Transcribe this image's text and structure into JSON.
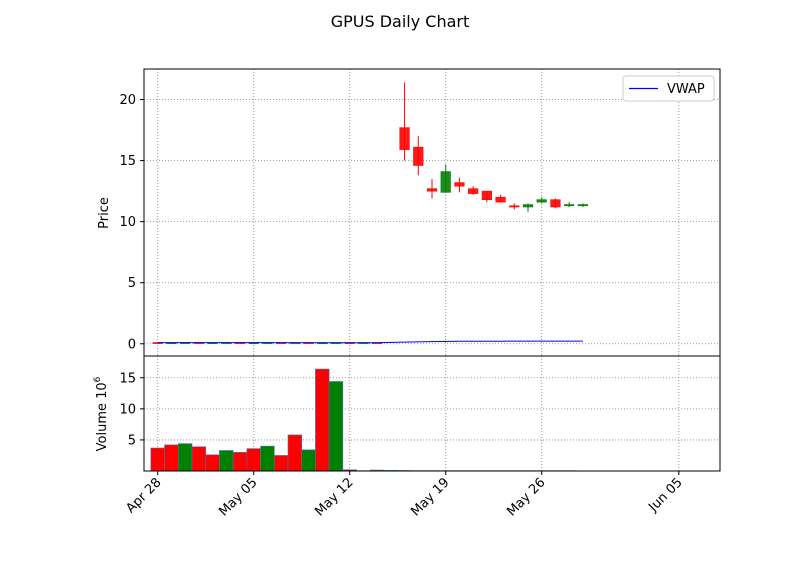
{
  "chart_data": [
    {
      "type": "candlestick",
      "title": "GPUS Daily Chart",
      "ylabel": "Price",
      "ylim": [
        -1,
        22.5
      ],
      "yticks": [
        0,
        5,
        10,
        15,
        20
      ],
      "grid": true,
      "legend": {
        "placement": "top-right",
        "entries": [
          "VWAP"
        ]
      },
      "colors": {
        "up": "#008000",
        "down": "#ff0000",
        "vwap": "#0000ff"
      },
      "x_dates": [
        "2025-04-27",
        "2025-04-28",
        "2025-04-29",
        "2025-04-30",
        "2025-05-01",
        "2025-05-02",
        "2025-05-03",
        "2025-05-04",
        "2025-05-05",
        "2025-05-06",
        "2025-05-07",
        "2025-05-08",
        "2025-05-09",
        "2025-05-10",
        "2025-05-11",
        "2025-05-12",
        "2025-05-13",
        "2025-05-14",
        "2025-05-15",
        "2025-05-16",
        "2025-05-17",
        "2025-05-18",
        "2025-05-19",
        "2025-05-20",
        "2025-05-21",
        "2025-05-22",
        "2025-05-23",
        "2025-05-24",
        "2025-05-25",
        "2025-05-26",
        "2025-05-27",
        "2025-05-28",
        "2025-05-29",
        "2025-05-30",
        "2025-05-31",
        "2025-06-01",
        "2025-06-02",
        "2025-06-03",
        "2025-06-04",
        "2025-06-05",
        "2025-06-06",
        "2025-06-07",
        "2025-06-08"
      ],
      "candles": [
        {
          "date": "2025-04-28",
          "open": 0.1,
          "high": 0.12,
          "low": 0.08,
          "close": 0.09
        },
        {
          "date": "2025-04-29",
          "open": 0.09,
          "high": 0.11,
          "low": 0.08,
          "close": 0.09
        },
        {
          "date": "2025-04-30",
          "open": 0.09,
          "high": 0.11,
          "low": 0.08,
          "close": 0.1
        },
        {
          "date": "2025-05-01",
          "open": 0.1,
          "high": 0.12,
          "low": 0.08,
          "close": 0.09
        },
        {
          "date": "2025-05-02",
          "open": 0.09,
          "high": 0.11,
          "low": 0.08,
          "close": 0.09
        },
        {
          "date": "2025-05-03",
          "open": 0.09,
          "high": 0.11,
          "low": 0.08,
          "close": 0.1
        },
        {
          "date": "2025-05-04",
          "open": 0.1,
          "high": 0.12,
          "low": 0.08,
          "close": 0.09
        },
        {
          "date": "2025-05-05",
          "open": 0.09,
          "high": 0.11,
          "low": 0.08,
          "close": 0.09
        },
        {
          "date": "2025-05-06",
          "open": 0.09,
          "high": 0.11,
          "low": 0.08,
          "close": 0.1
        },
        {
          "date": "2025-05-07",
          "open": 0.1,
          "high": 0.11,
          "low": 0.08,
          "close": 0.09
        },
        {
          "date": "2025-05-08",
          "open": 0.09,
          "high": 0.11,
          "low": 0.08,
          "close": 0.1
        },
        {
          "date": "2025-05-09",
          "open": 0.1,
          "high": 0.11,
          "low": 0.08,
          "close": 0.09
        },
        {
          "date": "2025-05-10",
          "open": 0.09,
          "high": 0.11,
          "low": 0.08,
          "close": 0.09
        },
        {
          "date": "2025-05-11",
          "open": 0.09,
          "high": 0.11,
          "low": 0.08,
          "close": 0.1
        },
        {
          "date": "2025-05-12",
          "open": 0.1,
          "high": 0.11,
          "low": 0.08,
          "close": 0.09
        },
        {
          "date": "2025-05-13",
          "open": 0.09,
          "high": 0.11,
          "low": 0.08,
          "close": 0.1
        },
        {
          "date": "2025-05-14",
          "open": 0.1,
          "high": 0.11,
          "low": 0.08,
          "close": 0.09
        },
        {
          "date": "2025-05-16",
          "open": 17.7,
          "high": 21.4,
          "low": 15.0,
          "close": 15.9
        },
        {
          "date": "2025-05-17",
          "open": 16.1,
          "high": 17.0,
          "low": 13.8,
          "close": 14.6
        },
        {
          "date": "2025-05-18",
          "open": 12.7,
          "high": 13.5,
          "low": 11.9,
          "close": 12.5
        },
        {
          "date": "2025-05-19",
          "open": 12.4,
          "high": 14.7,
          "low": 12.4,
          "close": 14.1
        },
        {
          "date": "2025-05-20",
          "open": 13.2,
          "high": 13.6,
          "low": 12.4,
          "close": 12.9
        },
        {
          "date": "2025-05-21",
          "open": 12.7,
          "high": 12.9,
          "low": 12.2,
          "close": 12.3
        },
        {
          "date": "2025-05-22",
          "open": 12.5,
          "high": 12.5,
          "low": 11.6,
          "close": 11.8
        },
        {
          "date": "2025-05-23",
          "open": 12.0,
          "high": 12.2,
          "low": 11.6,
          "close": 11.6
        },
        {
          "date": "2025-05-24",
          "open": 11.3,
          "high": 11.5,
          "low": 11.0,
          "close": 11.2
        },
        {
          "date": "2025-05-25",
          "open": 11.2,
          "high": 11.5,
          "low": 10.8,
          "close": 11.4
        },
        {
          "date": "2025-05-26",
          "open": 11.6,
          "high": 12.0,
          "low": 11.5,
          "close": 11.8
        },
        {
          "date": "2025-05-27",
          "open": 11.8,
          "high": 11.9,
          "low": 11.1,
          "close": 11.2
        },
        {
          "date": "2025-05-28",
          "open": 11.3,
          "high": 11.6,
          "low": 11.2,
          "close": 11.4
        },
        {
          "date": "2025-05-29",
          "open": 11.3,
          "high": 11.5,
          "low": 11.2,
          "close": 11.4
        }
      ],
      "vwap": [
        {
          "date": "2025-04-28",
          "value": 0.1
        },
        {
          "date": "2025-05-05",
          "value": 0.1
        },
        {
          "date": "2025-05-12",
          "value": 0.09
        },
        {
          "date": "2025-05-14",
          "value": 0.09
        },
        {
          "date": "2025-05-16",
          "value": 0.14
        },
        {
          "date": "2025-05-18",
          "value": 0.18
        },
        {
          "date": "2025-05-20",
          "value": 0.2
        },
        {
          "date": "2025-05-23",
          "value": 0.21
        },
        {
          "date": "2025-05-26",
          "value": 0.22
        },
        {
          "date": "2025-05-29",
          "value": 0.22
        }
      ],
      "xticks": [
        {
          "date": "2025-04-28",
          "label": "Apr 28"
        },
        {
          "date": "2025-05-05",
          "label": "May 05"
        },
        {
          "date": "2025-05-12",
          "label": "May 12"
        },
        {
          "date": "2025-05-19",
          "label": "May 19"
        },
        {
          "date": "2025-05-26",
          "label": "May 26"
        },
        {
          "date": "2025-06-05",
          "label": "Jun 05"
        }
      ]
    },
    {
      "type": "bar",
      "ylabel": "Volume  10",
      "ylabel_exponent": "6",
      "unit_multiplier": 1000000,
      "ylim": [
        0,
        18.5
      ],
      "yticks": [
        5,
        10,
        15
      ],
      "grid": true,
      "bars": [
        {
          "date": "2025-04-28",
          "value": 3.7,
          "color": "#ff0000"
        },
        {
          "date": "2025-04-29",
          "value": 4.2,
          "color": "#ff0000"
        },
        {
          "date": "2025-04-30",
          "value": 4.4,
          "color": "#008000"
        },
        {
          "date": "2025-05-01",
          "value": 3.9,
          "color": "#ff0000"
        },
        {
          "date": "2025-05-02",
          "value": 2.6,
          "color": "#ff0000"
        },
        {
          "date": "2025-05-03",
          "value": 3.3,
          "color": "#008000"
        },
        {
          "date": "2025-05-04",
          "value": 3.0,
          "color": "#ff0000"
        },
        {
          "date": "2025-05-05",
          "value": 3.6,
          "color": "#ff0000"
        },
        {
          "date": "2025-05-06",
          "value": 4.0,
          "color": "#008000"
        },
        {
          "date": "2025-05-07",
          "value": 2.5,
          "color": "#ff0000"
        },
        {
          "date": "2025-05-08",
          "value": 5.8,
          "color": "#ff0000"
        },
        {
          "date": "2025-05-09",
          "value": 3.4,
          "color": "#008000"
        },
        {
          "date": "2025-05-10",
          "value": 16.4,
          "color": "#ff0000"
        },
        {
          "date": "2025-05-11",
          "value": 14.4,
          "color": "#008000"
        },
        {
          "date": "2025-05-12",
          "value": 0.2,
          "color": "#ff0000"
        },
        {
          "date": "2025-05-13",
          "value": 0.05,
          "color": "#ff0000"
        },
        {
          "date": "2025-05-14",
          "value": 0.15,
          "color": "#ff0000"
        },
        {
          "date": "2025-05-15",
          "value": 0.1,
          "color": "#008000"
        },
        {
          "date": "2025-05-16",
          "value": 0.08,
          "color": "#ff0000"
        },
        {
          "date": "2025-05-17",
          "value": 0.06,
          "color": "#ff0000"
        },
        {
          "date": "2025-05-18",
          "value": 0.06,
          "color": "#ff0000"
        },
        {
          "date": "2025-05-19",
          "value": 0.05,
          "color": "#008000"
        },
        {
          "date": "2025-05-20",
          "value": 0.05,
          "color": "#ff0000"
        },
        {
          "date": "2025-05-21",
          "value": 0.05,
          "color": "#ff0000"
        },
        {
          "date": "2025-05-22",
          "value": 0.05,
          "color": "#ff0000"
        },
        {
          "date": "2025-05-23",
          "value": 0.05,
          "color": "#008000"
        },
        {
          "date": "2025-05-24",
          "value": 0.05,
          "color": "#ff0000"
        },
        {
          "date": "2025-05-25",
          "value": 0.05,
          "color": "#008000"
        },
        {
          "date": "2025-05-26",
          "value": 0.05,
          "color": "#008000"
        },
        {
          "date": "2025-05-27",
          "value": 0.05,
          "color": "#008000"
        },
        {
          "date": "2025-05-28",
          "value": 0.05,
          "color": "#ff0000"
        }
      ]
    }
  ]
}
